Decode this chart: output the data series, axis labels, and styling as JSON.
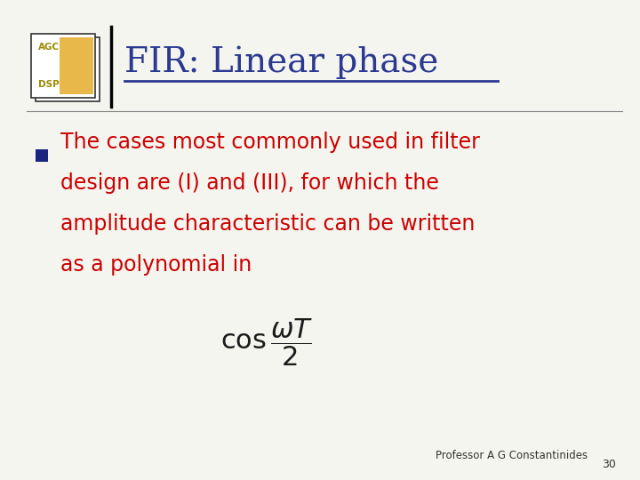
{
  "title": "FIR: Linear phase",
  "title_color": "#2B3990",
  "background_color": "#F5F5F0",
  "bullet_text_lines": [
    "The cases most commonly used in filter",
    "design are (I) and (III), for which the",
    "amplitude characteristic can be written",
    "as a polynomial in"
  ],
  "formula_latex": "\\cos\\frac{\\omega T}{2}",
  "footer_text": "Professor A G Constantinides",
  "footer_number": "30",
  "logo_text_top": "AGC",
  "logo_text_bottom": "DSP",
  "divider_color": "#000000",
  "bullet_color": "#1a237e",
  "text_color": "#CC0000",
  "footer_color": "#333333",
  "title_underline_color": "#2B3990",
  "logo_border_color": "#333333",
  "logo_yellow_color": "#E8B84B",
  "logo_text_color": "#9C8A00",
  "horizontal_line_color": "#888888"
}
